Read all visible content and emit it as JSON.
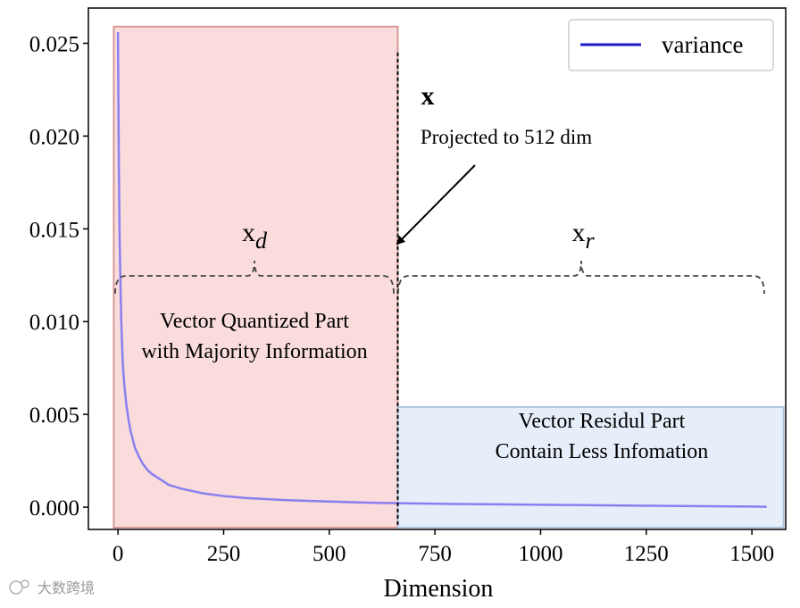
{
  "chart_data": {
    "type": "line",
    "title": "",
    "xlabel": "Dimension",
    "ylabel": "",
    "xlim": [
      -70,
      1580
    ],
    "ylim": [
      -0.0012,
      0.0269
    ],
    "xticks": [
      0,
      250,
      500,
      750,
      1000,
      1250,
      1500
    ],
    "xtick_labels": [
      "0",
      "250",
      "500",
      "750",
      "1000",
      "1250",
      "1500"
    ],
    "yticks": [
      0.0,
      0.005,
      0.01,
      0.015,
      0.02,
      0.025
    ],
    "ytick_labels": [
      "0.000",
      "0.005",
      "0.010",
      "0.015",
      "0.020",
      "0.025"
    ],
    "grid": false,
    "legend": {
      "placement": "top-right",
      "entries": [
        "variance"
      ]
    },
    "series": [
      {
        "name": "variance",
        "color": "#8b7ff0",
        "legend_color": "#1a1acf",
        "x": [
          0,
          2,
          4,
          6,
          8,
          10,
          12,
          15,
          20,
          25,
          30,
          40,
          50,
          60,
          70,
          80,
          100,
          120,
          150,
          200,
          250,
          300,
          400,
          500,
          600,
          700,
          800,
          900,
          1000,
          1100,
          1200,
          1300,
          1400,
          1500,
          1535
        ],
        "values": [
          0.0256,
          0.0185,
          0.0145,
          0.0118,
          0.0099,
          0.0085,
          0.0075,
          0.0066,
          0.0055,
          0.0047,
          0.0041,
          0.0032,
          0.0027,
          0.0023,
          0.002,
          0.0018,
          0.0015,
          0.0012,
          0.001,
          0.00075,
          0.0006,
          0.0005,
          0.00038,
          0.0003,
          0.00024,
          0.0002,
          0.00017,
          0.00015,
          0.00013,
          0.00011,
          9e-05,
          7e-05,
          5e-05,
          3e-05,
          2e-05
        ]
      }
    ],
    "regions": [
      {
        "name": "quantized",
        "x": [
          -10,
          662
        ],
        "y": [
          -0.0011,
          0.0259
        ],
        "fill": "#fadcdc",
        "stroke": "#d4938e"
      },
      {
        "name": "residual",
        "x": [
          662,
          1575
        ],
        "y": [
          -0.0011,
          0.0054
        ],
        "fill": "#e6eefa",
        "stroke": "#a9bfd8"
      }
    ],
    "split_x": 662,
    "annotations": {
      "x_main": "x",
      "projection_note": "Projected to 512 dim",
      "xd_base": "x",
      "xd_sub": "d",
      "xr_base": "x",
      "xr_sub": "r",
      "quantized_line1": "Vector Quantized Part",
      "quantized_line2": "with Majority Information",
      "residual_line1": "Vector Residul Part",
      "residual_line2": "Contain Less Infomation"
    }
  },
  "watermark": "大数跨境"
}
